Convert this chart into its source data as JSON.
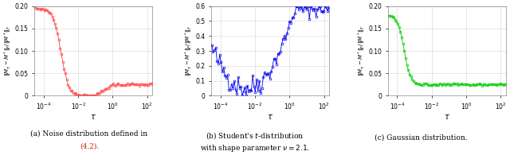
{
  "ylabel": "$\\|M_\\tau - M^*\\|_F / \\|M^*\\|_F$",
  "xlabel": "$\\tau$",
  "plot1": {
    "color": "#FF4444",
    "ylim": [
      0,
      0.2
    ],
    "yticks": [
      0,
      0.05,
      0.1,
      0.15,
      0.2
    ],
    "yticklabels": [
      "0",
      "0.05",
      "0.10",
      "0.15",
      "0.20"
    ]
  },
  "plot2": {
    "color": "#0000EE",
    "ylim": [
      0,
      0.6
    ],
    "yticks": [
      0,
      0.1,
      0.2,
      0.3,
      0.4,
      0.5,
      0.6
    ],
    "yticklabels": [
      "0",
      "0.1",
      "0.2",
      "0.3",
      "0.4",
      "0.5",
      "0.6"
    ]
  },
  "plot3": {
    "color": "#00CC00",
    "ylim": [
      0,
      0.2
    ],
    "yticks": [
      0,
      0.05,
      0.1,
      0.15,
      0.2
    ],
    "yticklabels": [
      "0",
      "0.05",
      "0.10",
      "0.15",
      "0.20"
    ]
  },
  "xlim": [
    3e-05,
    200
  ],
  "xticks": [
    0.0001,
    0.01,
    1.0,
    100.0
  ],
  "grid_color": "#DDDDDD",
  "marker": "o",
  "markersize": 2.0,
  "linewidth": 0.6
}
